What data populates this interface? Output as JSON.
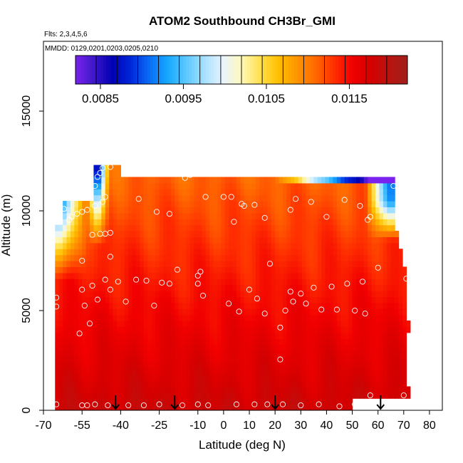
{
  "chart_data": {
    "type": "heatmap",
    "title": "ATOM2 Southbound CH3Br_GMI",
    "subtitle_flights": "Flts: 2,3,4,5,6",
    "subtitle_dates": "MMDD: 0129,0201,0203,0205,0210",
    "xlabel": "Latitude (deg N)",
    "ylabel": "Altitude (m)",
    "xlim": [
      -70,
      85
    ],
    "ylim": [
      0,
      18500
    ],
    "x_ticks": [
      -70,
      -55,
      -40,
      -25,
      -10,
      0,
      10,
      20,
      30,
      40,
      50,
      60,
      70,
      80
    ],
    "y_ticks": [
      0,
      5000,
      10000,
      15000
    ],
    "colorbar": {
      "min": 0.0082,
      "max": 0.0122,
      "tick_values": [
        0.0085,
        0.0095,
        0.0105,
        0.0115
      ],
      "tick_labels": [
        "0.0085",
        "0.0095",
        "0.0105",
        "0.0115"
      ],
      "colors": [
        "#7a22ee",
        "#3d18c8",
        "#0000b4",
        "#0028dc",
        "#0a6cf5",
        "#16a8ff",
        "#5cc8ff",
        "#a8e0ff",
        "#e8f4ff",
        "#fff8b8",
        "#ffe050",
        "#ffc000",
        "#ff9500",
        "#ff6a00",
        "#ff3000",
        "#f20000",
        "#d40000",
        "#b81410",
        "#a0201c"
      ]
    },
    "flight_marker_latitudes": [
      -42,
      -19,
      20,
      61
    ],
    "sample_points": [
      {
        "lat": -65,
        "alt": 300
      },
      {
        "lat": -55,
        "alt": 250
      },
      {
        "lat": -53,
        "alt": 250
      },
      {
        "lat": -50,
        "alt": 300
      },
      {
        "lat": -45,
        "alt": 250
      },
      {
        "lat": -37,
        "alt": 250
      },
      {
        "lat": -31,
        "alt": 250
      },
      {
        "lat": -25,
        "alt": 300
      },
      {
        "lat": -16,
        "alt": 250
      },
      {
        "lat": -10,
        "alt": 300
      },
      {
        "lat": -6,
        "alt": 250
      },
      {
        "lat": 5,
        "alt": 300
      },
      {
        "lat": 12,
        "alt": 300
      },
      {
        "lat": 17,
        "alt": 300
      },
      {
        "lat": 23,
        "alt": 300
      },
      {
        "lat": 30,
        "alt": 250
      },
      {
        "lat": 37,
        "alt": 300
      },
      {
        "lat": 45,
        "alt": 200
      },
      {
        "lat": 51,
        "alt": 300
      },
      {
        "lat": 57,
        "alt": 750
      },
      {
        "lat": 70,
        "alt": 750
      },
      {
        "lat": 22,
        "alt": 2550
      },
      {
        "lat": -56,
        "alt": 3850
      },
      {
        "lat": -52,
        "alt": 4350
      },
      {
        "lat": 22,
        "alt": 4150
      },
      {
        "lat": -65,
        "alt": 5200
      },
      {
        "lat": -54,
        "alt": 5250
      },
      {
        "lat": -27,
        "alt": 5250
      },
      {
        "lat": -38,
        "alt": 5450
      },
      {
        "lat": -65,
        "alt": 5650
      },
      {
        "lat": -49,
        "alt": 5550
      },
      {
        "lat": -8,
        "alt": 5750
      },
      {
        "lat": 2,
        "alt": 5350
      },
      {
        "lat": 6,
        "alt": 4950
      },
      {
        "lat": 10,
        "alt": 6050
      },
      {
        "lat": 13,
        "alt": 5600
      },
      {
        "lat": 16,
        "alt": 4850
      },
      {
        "lat": 24,
        "alt": 5000
      },
      {
        "lat": 26,
        "alt": 5950
      },
      {
        "lat": 27,
        "alt": 5450
      },
      {
        "lat": 30,
        "alt": 5850
      },
      {
        "lat": 32,
        "alt": 5350
      },
      {
        "lat": 35,
        "alt": 6150
      },
      {
        "lat": 38,
        "alt": 5050
      },
      {
        "lat": 42,
        "alt": 6200
      },
      {
        "lat": 44,
        "alt": 5050
      },
      {
        "lat": 48,
        "alt": 6350
      },
      {
        "lat": 51,
        "alt": 5000
      },
      {
        "lat": 55,
        "alt": 4850
      },
      {
        "lat": 54,
        "alt": 6450
      },
      {
        "lat": -55,
        "alt": 6050
      },
      {
        "lat": -51,
        "alt": 6250
      },
      {
        "lat": -46,
        "alt": 6550
      },
      {
        "lat": -44,
        "alt": 6050
      },
      {
        "lat": -41,
        "alt": 6450
      },
      {
        "lat": -34,
        "alt": 6550
      },
      {
        "lat": -30,
        "alt": 6500
      },
      {
        "lat": -24,
        "alt": 6400
      },
      {
        "lat": -21,
        "alt": 6350
      },
      {
        "lat": -18,
        "alt": 7050
      },
      {
        "lat": -10,
        "alt": 6750
      },
      {
        "lat": -9,
        "alt": 6950
      },
      {
        "lat": -10,
        "alt": 6350
      },
      {
        "lat": 18,
        "alt": 7350
      },
      {
        "lat": 60,
        "alt": 7150
      },
      {
        "lat": 71,
        "alt": 6600
      },
      {
        "lat": -55,
        "alt": 7500
      },
      {
        "lat": -44,
        "alt": 7700
      },
      {
        "lat": -51,
        "alt": 8800
      },
      {
        "lat": -48,
        "alt": 8850
      },
      {
        "lat": -46,
        "alt": 8850
      },
      {
        "lat": -44,
        "alt": 8900
      },
      {
        "lat": -60,
        "alt": 9550
      },
      {
        "lat": -59,
        "alt": 9700
      },
      {
        "lat": -57,
        "alt": 9850
      },
      {
        "lat": -55,
        "alt": 9950
      },
      {
        "lat": -53,
        "alt": 10050
      },
      {
        "lat": -50,
        "alt": 10250
      },
      {
        "lat": -47,
        "alt": 10450
      },
      {
        "lat": -62,
        "alt": 10100
      },
      {
        "lat": -33,
        "alt": 10600
      },
      {
        "lat": -26,
        "alt": 9950
      },
      {
        "lat": -21,
        "alt": 9850
      },
      {
        "lat": 4,
        "alt": 9450
      },
      {
        "lat": 16,
        "alt": 9650
      },
      {
        "lat": 26,
        "alt": 10050
      },
      {
        "lat": 40,
        "alt": 9700
      },
      {
        "lat": 56,
        "alt": 9550
      },
      {
        "lat": 57,
        "alt": 9700
      },
      {
        "lat": 53,
        "alt": 10250
      },
      {
        "lat": 0,
        "alt": 10700
      },
      {
        "lat": 3,
        "alt": 10700
      },
      {
        "lat": 7,
        "alt": 10350
      },
      {
        "lat": 8,
        "alt": 10250
      },
      {
        "lat": 12,
        "alt": 10300
      },
      {
        "lat": 28,
        "alt": 10600
      },
      {
        "lat": 34,
        "alt": 10450
      },
      {
        "lat": 47,
        "alt": 10550
      },
      {
        "lat": -7,
        "alt": 10700
      },
      {
        "lat": -46,
        "alt": 10700
      },
      {
        "lat": -53,
        "alt": 10700
      },
      {
        "lat": -52,
        "alt": 11050
      },
      {
        "lat": -50,
        "alt": 11250
      },
      {
        "lat": -49,
        "alt": 11700
      },
      {
        "lat": -48,
        "alt": 11900
      },
      {
        "lat": -47,
        "alt": 12150
      },
      {
        "lat": -44,
        "alt": 12200
      },
      {
        "lat": -15,
        "alt": 11650
      },
      {
        "lat": -13,
        "alt": 11800
      },
      {
        "lat": -11,
        "alt": 11950
      },
      {
        "lat": -10,
        "alt": 11950
      },
      {
        "lat": 66,
        "alt": 11250
      },
      {
        "lat": 69,
        "alt": 11200
      }
    ]
  }
}
